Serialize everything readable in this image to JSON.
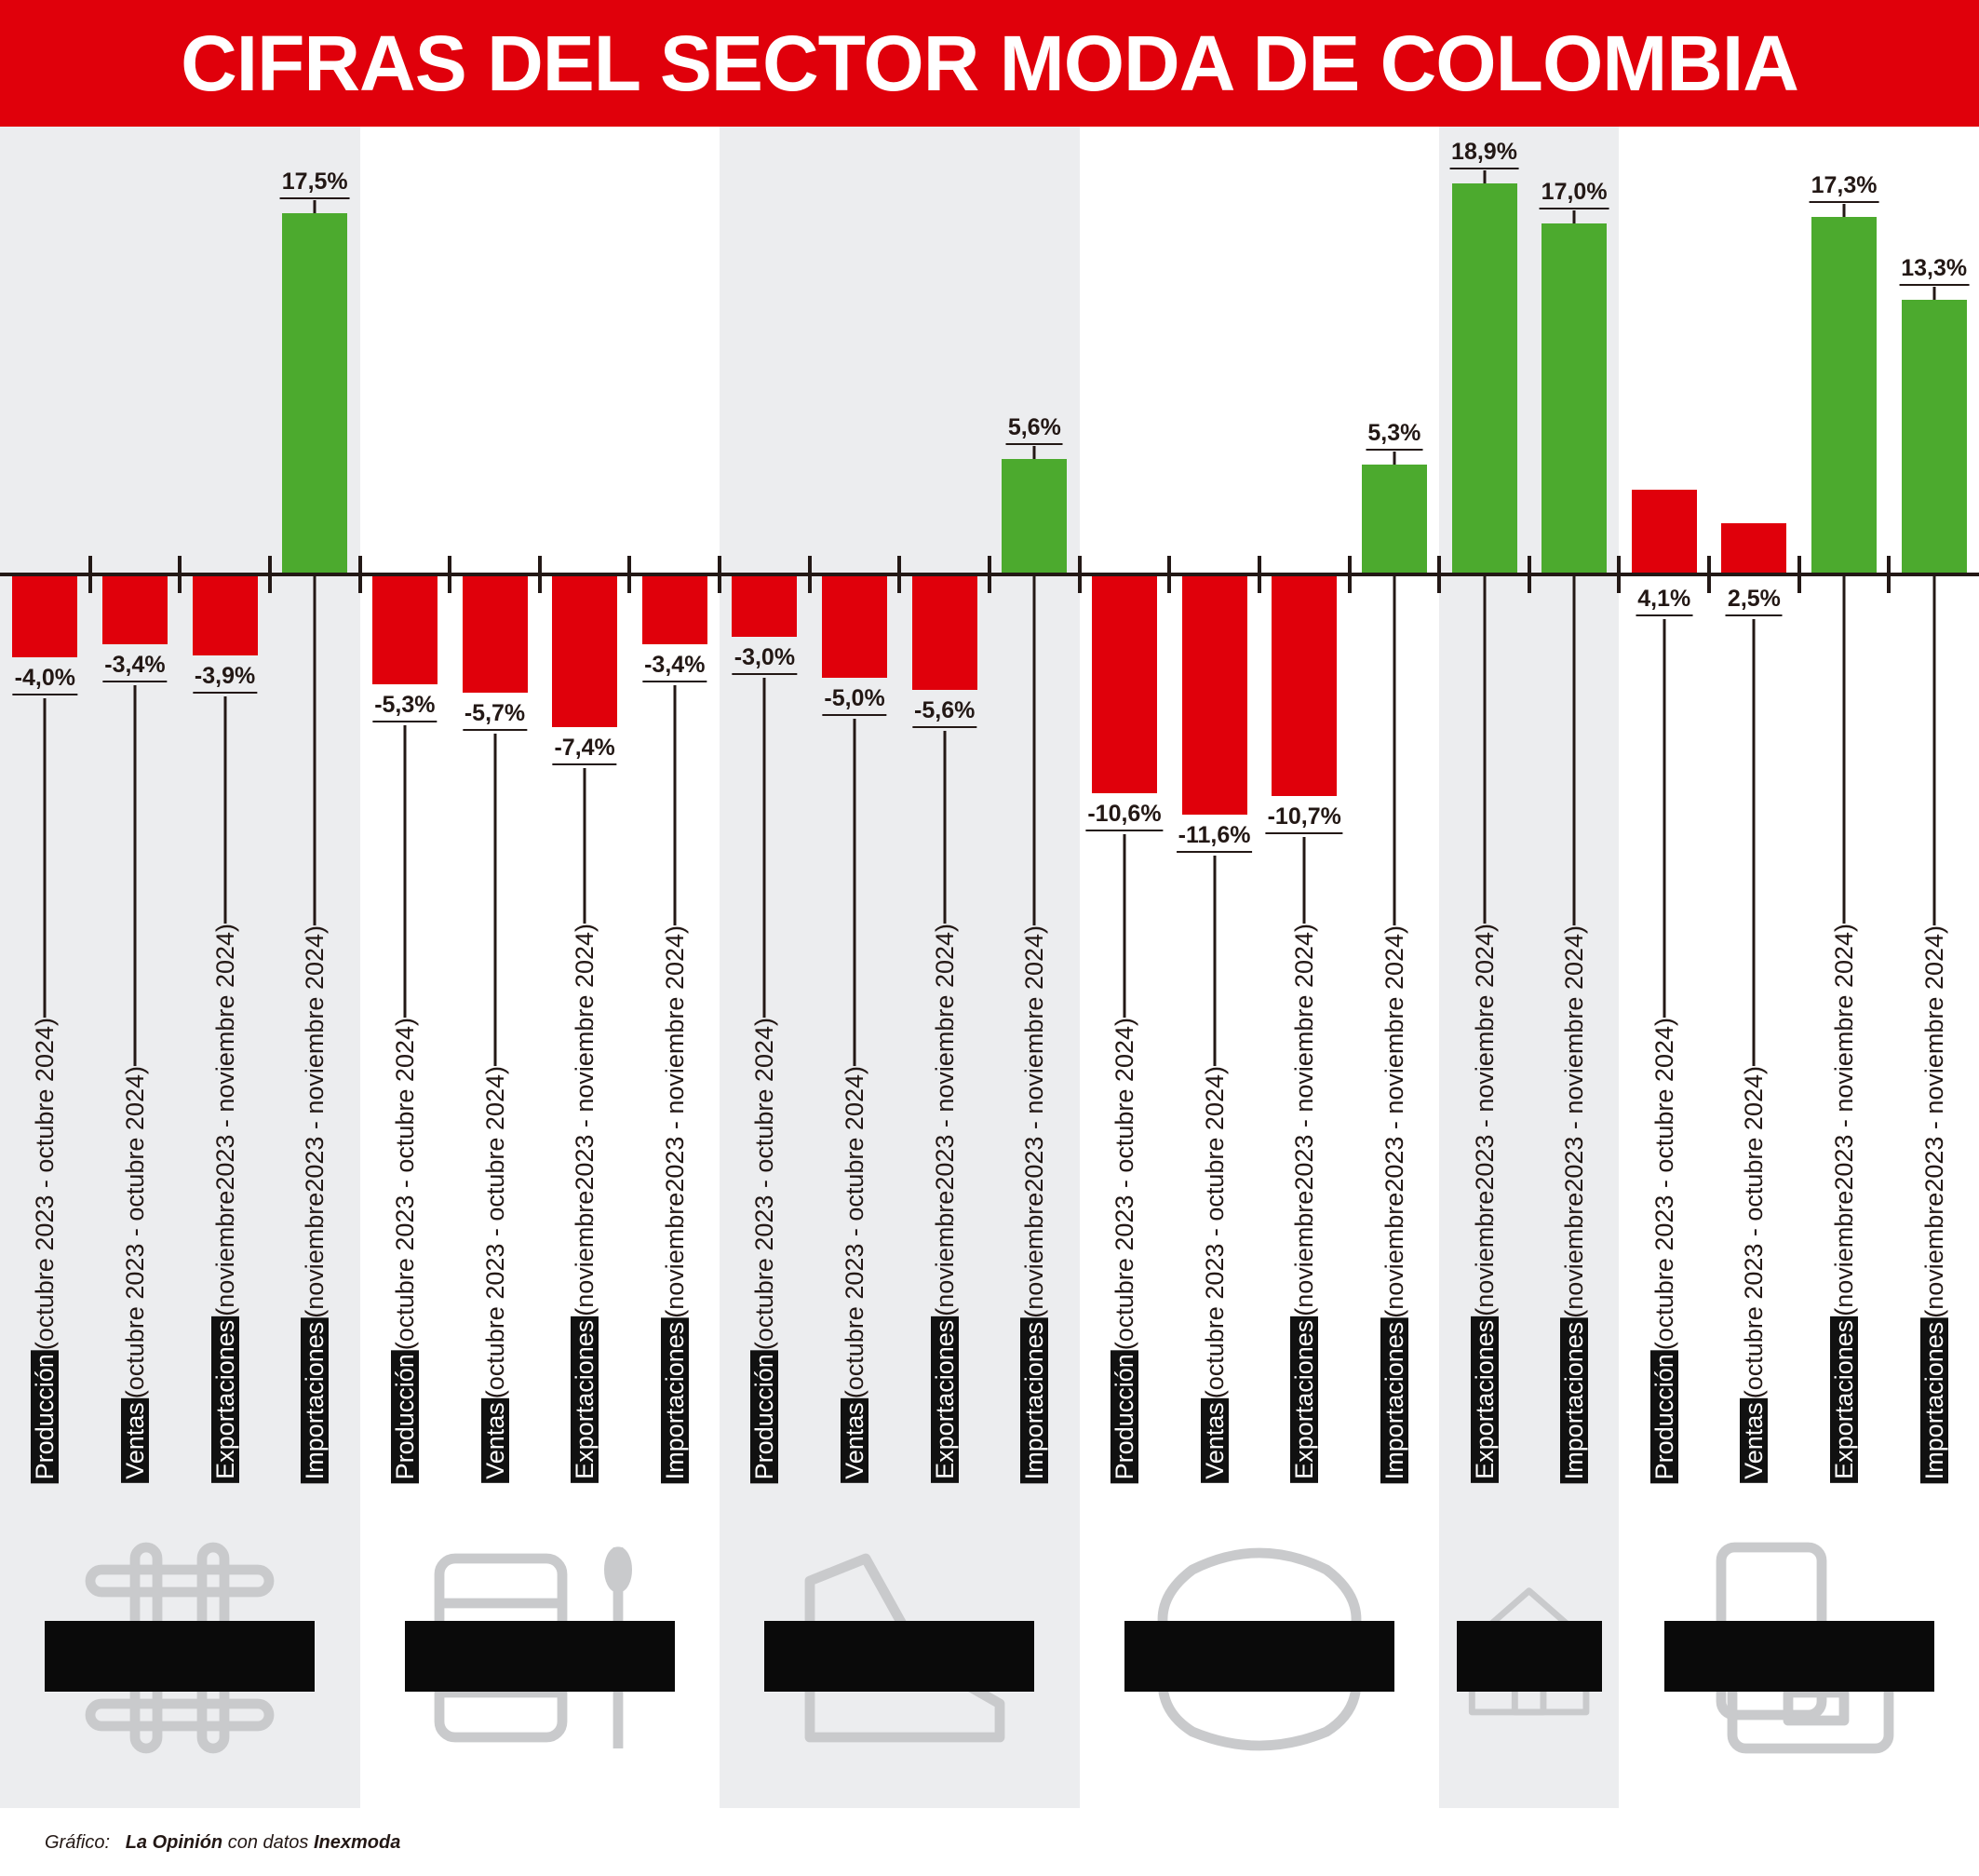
{
  "title": "CIFRAS DEL SECTOR MODA DE COLOMBIA",
  "footer": {
    "prefix": "Gráfico:",
    "source": "La Opinión",
    "middle": "con datos",
    "provider": "Inexmoda"
  },
  "colors": {
    "positive": "#4caa2e",
    "negative": "#e0000b",
    "header": "#e0000b",
    "band": "#ecedef"
  },
  "chart_data": {
    "type": "bar",
    "title": "CIFRAS DEL SECTOR MODA DE COLOMBIA",
    "unit": "%",
    "groups": [
      {
        "name": "TEXTILES",
        "icon": "yarn-icon",
        "shaded": true,
        "bars": [
          {
            "metric": "Producción",
            "period": "(octubre 2023 - octubre 2024)",
            "value": -4.0,
            "label": "-4,0%",
            "color": "negative"
          },
          {
            "metric": "Ventas",
            "period": "(octubre 2023 - octubre 2024)",
            "value": -3.4,
            "label": "-3,4%",
            "color": "negative"
          },
          {
            "metric": "Exportaciones",
            "period": "(noviembre2023 - noviembre 2024)",
            "value": -3.9,
            "label": "-3,9%",
            "color": "negative"
          },
          {
            "metric": "Importaciones",
            "period": "(noviembre2023 - noviembre 2024)",
            "value": 17.5,
            "label": "17,5%",
            "color": "positive"
          }
        ]
      },
      {
        "name": "CONFECCIONES",
        "icon": "thread-needle-icon",
        "shaded": false,
        "bars": [
          {
            "metric": "Producción",
            "period": "(octubre 2023 - octubre 2024)",
            "value": -5.3,
            "label": "-5,3%",
            "color": "negative"
          },
          {
            "metric": "Ventas",
            "period": "(octubre 2023 - octubre 2024)",
            "value": -5.7,
            "label": "-5,7%",
            "color": "negative"
          },
          {
            "metric": "Exportaciones",
            "period": "(noviembre2023 - noviembre 2024)",
            "value": -7.4,
            "label": "-7,4%",
            "color": "negative"
          },
          {
            "metric": "Importaciones",
            "period": "(noviembre2023 - noviembre 2024)",
            "value": -3.4,
            "label": "-3,4%",
            "color": "negative"
          }
        ]
      },
      {
        "name": "CALZADO",
        "icon": "shoe-icon",
        "shaded": true,
        "bars": [
          {
            "metric": "Producción",
            "period": "(octubre 2023 - octubre 2024)",
            "value": -3.0,
            "label": "-3,0%",
            "color": "negative"
          },
          {
            "metric": "Ventas",
            "period": "(octubre 2023 - octubre 2024)",
            "value": -5.0,
            "label": "-5,0%",
            "color": "negative"
          },
          {
            "metric": "Exportaciones",
            "period": "(noviembre2023 - noviembre 2024)",
            "value": -5.6,
            "label": "-5,6%",
            "color": "negative"
          },
          {
            "metric": "Importaciones",
            "period": "(noviembre2023 - noviembre 2024)",
            "value": 5.6,
            "label": "5,6%",
            "color": "positive"
          }
        ]
      },
      {
        "name": "MARROQUINERÍA",
        "icon": "leather-hide-icon",
        "shaded": false,
        "bars": [
          {
            "metric": "Producción",
            "period": "(octubre 2023 - octubre 2024)",
            "value": -10.6,
            "label": "-10,6%",
            "color": "negative"
          },
          {
            "metric": "Ventas",
            "period": "(octubre 2023 - octubre 2024)",
            "value": -11.6,
            "label": "-11,6%",
            "color": "negative"
          },
          {
            "metric": "Exportaciones",
            "period": "(noviembre2023 - noviembre 2024)",
            "value": -10.7,
            "label": "-10,7%",
            "color": "negative"
          },
          {
            "metric": "Importaciones",
            "period": "(noviembre2023 - noviembre 2024)",
            "value": 5.3,
            "label": "5,3%",
            "color": "positive"
          }
        ]
      },
      {
        "name": "HOGAR",
        "icon": "house-icon",
        "shaded": true,
        "bars": [
          {
            "metric": "Exportaciones",
            "period": "(noviembre2023 - noviembre 2024)",
            "value": 18.9,
            "label": "18,9%",
            "color": "positive"
          },
          {
            "metric": "Importaciones",
            "period": "(noviembre2023 - noviembre 2024)",
            "value": 17.0,
            "label": "17,0%",
            "color": "positive"
          }
        ]
      },
      {
        "name": "COSMÉTICO",
        "icon": "cosmetics-icon",
        "shaded": false,
        "bars": [
          {
            "metric": "Producción",
            "period": "(octubre 2023 - octubre 2024)",
            "value": 4.1,
            "label": "4,1%",
            "color": "negative"
          },
          {
            "metric": "Ventas",
            "period": "(octubre 2023 - octubre 2024)",
            "value": 2.5,
            "label": "2,5%",
            "color": "negative"
          },
          {
            "metric": "Exportaciones",
            "period": "(noviembre2023 - noviembre 2024)",
            "value": 17.3,
            "label": "17,3%",
            "color": "positive"
          },
          {
            "metric": "Importaciones",
            "period": "(noviembre2023 - noviembre 2024)",
            "value": 13.3,
            "label": "13,3%",
            "color": "positive"
          }
        ]
      }
    ]
  }
}
